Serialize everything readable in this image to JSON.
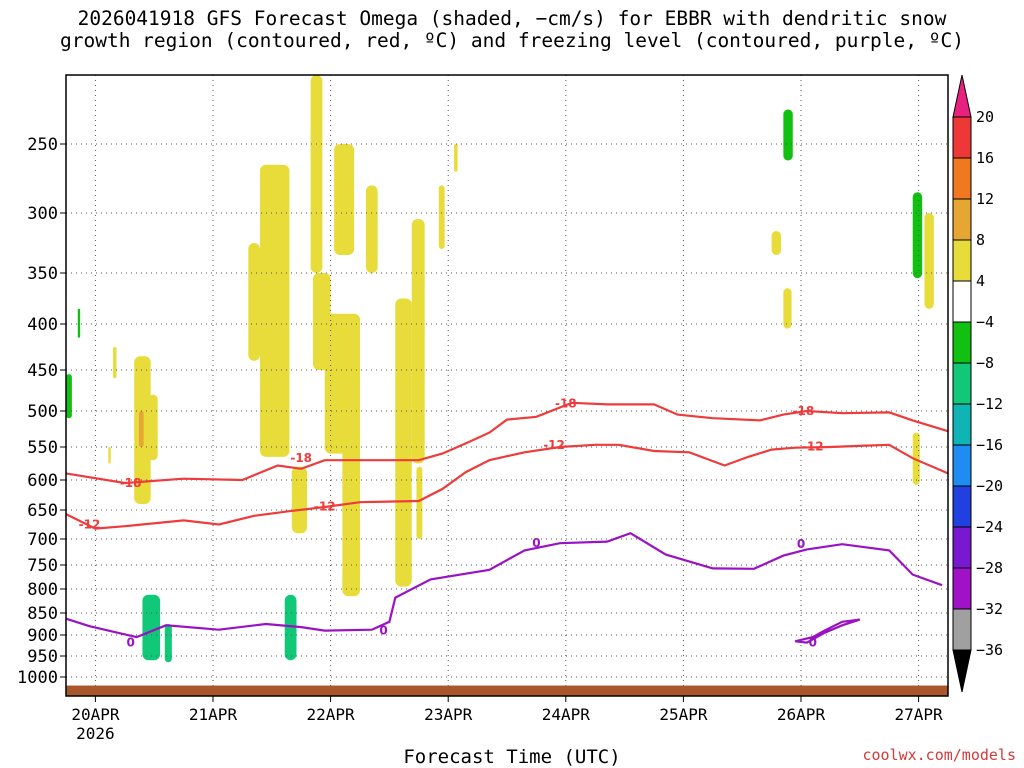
{
  "title_line1": "2026041918 GFS Forecast Omega (shaded, −cm/s) for EBBR with dendritic snow",
  "title_line2": "growth region (contoured, red, ºC) and freezing level (contoured, purple, ºC)",
  "xlabel": "Forecast Time (UTC)",
  "credit": "coolwx.com/models",
  "chart_data": {
    "type": "heatmap",
    "title": "2026041918 GFS Forecast Omega (shaded, −cm/s) for EBBR with dendritic snow growth region (contoured, red, ºC) and freezing level (contoured, purple, ºC)",
    "xlabel": "Forecast Time (UTC)",
    "ylabel": "",
    "x_start": "2026-04-19T18Z",
    "x_end": "2026-04-27T06Z",
    "xticks": [
      {
        "t": 0.25,
        "label": "20APR",
        "sub": "2026"
      },
      {
        "t": 1.25,
        "label": "21APR"
      },
      {
        "t": 2.25,
        "label": "22APR"
      },
      {
        "t": 3.25,
        "label": "23APR"
      },
      {
        "t": 4.25,
        "label": "24APR"
      },
      {
        "t": 5.25,
        "label": "25APR"
      },
      {
        "t": 6.25,
        "label": "26APR"
      },
      {
        "t": 7.25,
        "label": "27APR"
      }
    ],
    "yticks": [
      250,
      300,
      350,
      400,
      450,
      500,
      550,
      600,
      650,
      700,
      750,
      800,
      850,
      900,
      950,
      1000
    ],
    "ylim_hPa": [
      200,
      1040
    ],
    "grid": true,
    "colorbar": {
      "labels": [
        "20",
        "16",
        "12",
        "8",
        "4",
        "−4",
        "−8",
        "−12",
        "−16",
        "−20",
        "−24",
        "−28",
        "−32",
        "−36"
      ],
      "colors": [
        "#e8207e",
        "#ee3838",
        "#f07820",
        "#e6a634",
        "#e8dc3a",
        "#ffffff",
        "#12c012",
        "#10c878",
        "#10b4b4",
        "#1e8cf0",
        "#2040e0",
        "#7818d0",
        "#a012c8",
        "#a0a0a0",
        "#000000"
      ]
    },
    "series": [
      {
        "name": "-18",
        "color": "#ee3b3b",
        "points": [
          [
            0,
            590
          ],
          [
            0.5,
            605
          ],
          [
            1,
            598
          ],
          [
            1.5,
            600
          ],
          [
            1.8,
            578
          ],
          [
            2,
            583
          ],
          [
            2.2,
            570
          ],
          [
            2.5,
            570
          ],
          [
            3,
            570
          ],
          [
            3.2,
            560
          ],
          [
            3.4,
            545
          ],
          [
            3.6,
            530
          ],
          [
            3.75,
            512
          ],
          [
            4,
            508
          ],
          [
            4.3,
            490
          ],
          [
            4.6,
            492
          ],
          [
            5,
            492
          ],
          [
            5.2,
            505
          ],
          [
            5.5,
            510
          ],
          [
            5.9,
            513
          ],
          [
            6.1,
            505
          ],
          [
            6.3,
            500
          ],
          [
            6.6,
            503
          ],
          [
            7,
            502
          ],
          [
            7.2,
            513
          ],
          [
            7.5,
            528
          ]
        ],
        "labels": [
          [
            0.55,
            605
          ],
          [
            2.0,
            567
          ],
          [
            4.25,
            491
          ],
          [
            6.27,
            500
          ]
        ]
      },
      {
        "name": "-12",
        "color": "#ee3b3b",
        "points": [
          [
            0,
            657
          ],
          [
            0.25,
            682
          ],
          [
            0.5,
            678
          ],
          [
            1,
            668
          ],
          [
            1.3,
            675
          ],
          [
            1.6,
            660
          ],
          [
            1.9,
            652
          ],
          [
            2.2,
            645
          ],
          [
            2.5,
            637
          ],
          [
            3,
            635
          ],
          [
            3.2,
            615
          ],
          [
            3.4,
            588
          ],
          [
            3.6,
            570
          ],
          [
            3.9,
            558
          ],
          [
            4.2,
            550
          ],
          [
            4.5,
            547
          ],
          [
            4.7,
            547
          ],
          [
            5,
            556
          ],
          [
            5.3,
            558
          ],
          [
            5.6,
            578
          ],
          [
            5.8,
            565
          ],
          [
            6,
            554
          ],
          [
            6.2,
            551
          ],
          [
            6.5,
            550
          ],
          [
            6.8,
            548
          ],
          [
            7,
            547
          ],
          [
            7.2,
            567
          ],
          [
            7.5,
            590
          ]
        ],
        "labels": [
          [
            0.2,
            675
          ],
          [
            2.2,
            644
          ],
          [
            4.15,
            547
          ],
          [
            6.35,
            549
          ]
        ]
      },
      {
        "name": "0",
        "color": "#9a12c4",
        "points": [
          [
            0,
            863
          ],
          [
            0.2,
            880
          ],
          [
            0.6,
            905
          ],
          [
            0.85,
            878
          ],
          [
            1.3,
            888
          ],
          [
            1.7,
            875
          ],
          [
            2,
            882
          ],
          [
            2.2,
            890
          ],
          [
            2.6,
            888
          ],
          [
            2.75,
            870
          ],
          [
            2.8,
            818
          ],
          [
            3.1,
            780
          ],
          [
            3.6,
            760
          ],
          [
            3.9,
            722
          ],
          [
            4.2,
            708
          ],
          [
            4.6,
            705
          ],
          [
            4.8,
            690
          ],
          [
            5.1,
            730
          ],
          [
            5.5,
            757
          ],
          [
            5.85,
            758
          ],
          [
            6.1,
            732
          ],
          [
            6.3,
            720
          ],
          [
            6.6,
            710
          ],
          [
            7,
            722
          ],
          [
            7.2,
            770
          ],
          [
            7.45,
            792
          ]
        ],
        "labels": [
          [
            0.55,
            918
          ],
          [
            2.7,
            890
          ],
          [
            4.0,
            708
          ],
          [
            6.25,
            710
          ]
        ]
      },
      {
        "name": "0",
        "color": "#9a12c4",
        "points": [
          [
            6.2,
            915
          ],
          [
            6.35,
            905
          ],
          [
            6.45,
            890
          ],
          [
            6.6,
            870
          ],
          [
            6.75,
            865
          ],
          [
            6.6,
            878
          ],
          [
            6.45,
            895
          ],
          [
            6.3,
            918
          ],
          [
            6.2,
            915
          ]
        ],
        "labels": [
          [
            6.35,
            918
          ]
        ]
      }
    ],
    "shaded_features": [
      {
        "t0": 0.0,
        "t1": 0.05,
        "p0": 455,
        "p1": 510,
        "value": -6
      },
      {
        "t0": 0.1,
        "t1": 0.12,
        "p0": 385,
        "p1": 415,
        "value": -6
      },
      {
        "t0": 0.65,
        "t1": 0.8,
        "p0": 812,
        "p1": 960,
        "value": -8
      },
      {
        "t0": 0.68,
        "t1": 0.78,
        "p0": 850,
        "p1": 935,
        "value": -10
      },
      {
        "t0": 0.84,
        "t1": 0.9,
        "p0": 875,
        "p1": 965,
        "value": -8
      },
      {
        "t0": 1.86,
        "t1": 1.96,
        "p0": 812,
        "p1": 960,
        "value": -8
      },
      {
        "t0": 1.88,
        "t1": 1.94,
        "p0": 850,
        "p1": 935,
        "value": -10
      },
      {
        "t0": 6.1,
        "t1": 6.18,
        "p0": 225,
        "p1": 262,
        "value": -6
      },
      {
        "t0": 7.2,
        "t1": 7.28,
        "p0": 285,
        "p1": 355,
        "value": -6
      },
      {
        "t0": 0.58,
        "t1": 0.72,
        "p0": 435,
        "p1": 640,
        "value": 5
      },
      {
        "t0": 0.7,
        "t1": 0.78,
        "p0": 480,
        "p1": 570,
        "value": 5
      },
      {
        "t0": 0.4,
        "t1": 0.43,
        "p0": 425,
        "p1": 460,
        "value": 5
      },
      {
        "t0": 0.36,
        "t1": 0.38,
        "p0": 550,
        "p1": 575,
        "value": 5
      },
      {
        "t0": 0.62,
        "t1": 0.66,
        "p0": 500,
        "p1": 550,
        "value": 9
      },
      {
        "t0": 1.65,
        "t1": 1.9,
        "p0": 265,
        "p1": 565,
        "value": 5
      },
      {
        "t0": 1.55,
        "t1": 1.65,
        "p0": 325,
        "p1": 440,
        "value": 5
      },
      {
        "t0": 1.92,
        "t1": 2.05,
        "p0": 580,
        "p1": 690,
        "value": 5
      },
      {
        "t0": 2.08,
        "t1": 2.18,
        "p0": 200,
        "p1": 350,
        "value": 5
      },
      {
        "t0": 2.1,
        "t1": 2.25,
        "p0": 350,
        "p1": 450,
        "value": 5
      },
      {
        "t0": 2.2,
        "t1": 2.5,
        "p0": 390,
        "p1": 560,
        "value": 5
      },
      {
        "t0": 2.28,
        "t1": 2.45,
        "p0": 250,
        "p1": 335,
        "value": 5
      },
      {
        "t0": 2.35,
        "t1": 2.5,
        "p0": 540,
        "p1": 815,
        "value": 5
      },
      {
        "t0": 2.55,
        "t1": 2.65,
        "p0": 280,
        "p1": 350,
        "value": 5
      },
      {
        "t0": 2.8,
        "t1": 2.94,
        "p0": 375,
        "p1": 795,
        "value": 5
      },
      {
        "t0": 2.94,
        "t1": 3.05,
        "p0": 305,
        "p1": 575,
        "value": 5
      },
      {
        "t0": 2.98,
        "t1": 3.03,
        "p0": 580,
        "p1": 700,
        "value": 5
      },
      {
        "t0": 3.17,
        "t1": 3.22,
        "p0": 280,
        "p1": 330,
        "value": 5
      },
      {
        "t0": 3.3,
        "t1": 3.33,
        "p0": 250,
        "p1": 270,
        "value": 5
      },
      {
        "t0": 6.0,
        "t1": 6.08,
        "p0": 315,
        "p1": 335,
        "value": 5
      },
      {
        "t0": 6.1,
        "t1": 6.17,
        "p0": 365,
        "p1": 405,
        "value": 5
      },
      {
        "t0": 7.3,
        "t1": 7.38,
        "p0": 300,
        "p1": 385,
        "value": 5
      },
      {
        "t0": 7.2,
        "t1": 7.26,
        "p0": 530,
        "p1": 608,
        "value": 5
      }
    ],
    "ground": {
      "color": "#a8582a"
    }
  }
}
